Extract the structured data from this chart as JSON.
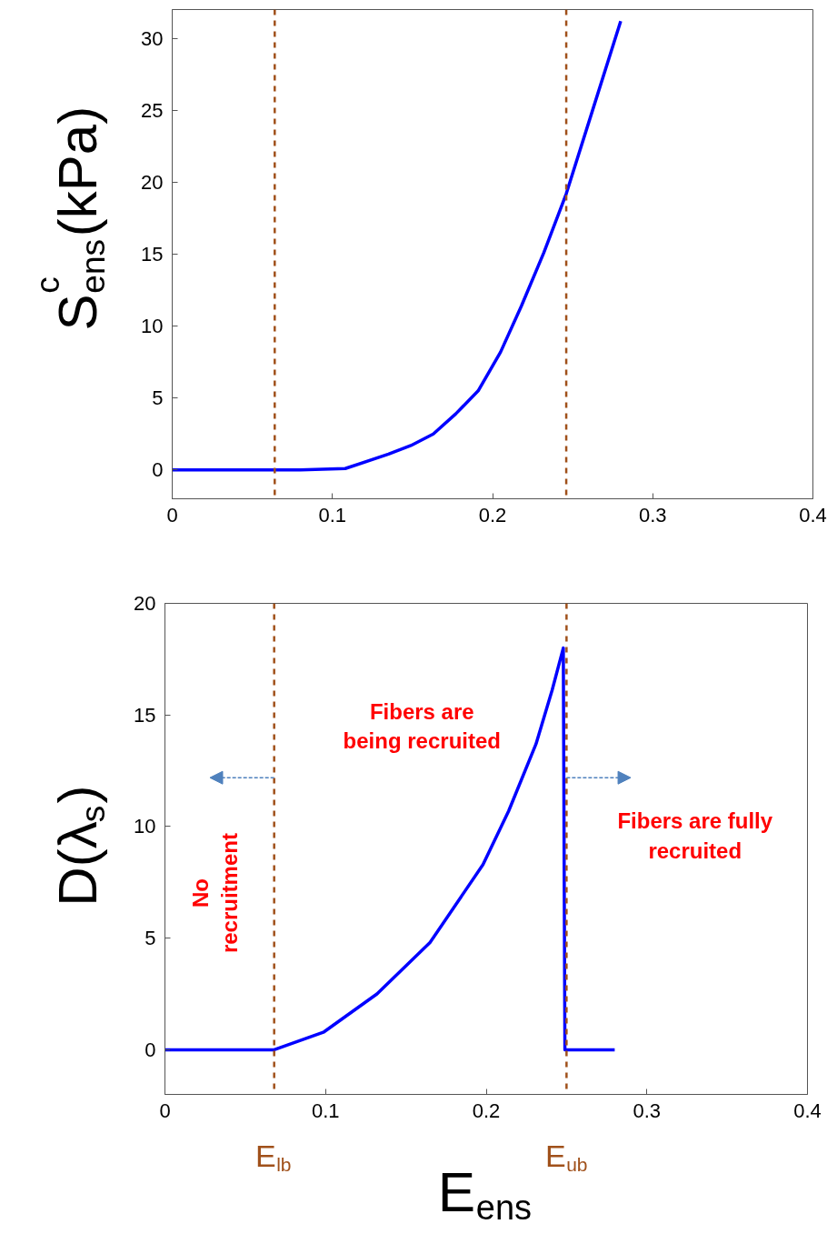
{
  "chart_data": [
    {
      "type": "line",
      "ylabel": "S$^{c}$$_{ens}$(kPa)",
      "xlim": [
        0,
        0.4
      ],
      "xticks": [
        0,
        0.1,
        0.2,
        0.3,
        0.4
      ],
      "ylim": [
        -2,
        32
      ],
      "yticks": [
        0,
        5,
        10,
        15,
        20,
        25,
        30
      ],
      "grid": false,
      "line_style": "solid",
      "series": [
        {
          "color": "#0000ff",
          "x": [
            0,
            0.04,
            0.08,
            0.108,
            0.135,
            0.149,
            0.163,
            0.177,
            0.191,
            0.205,
            0.218,
            0.232,
            0.246,
            0.263,
            0.28
          ],
          "values": [
            0,
            0,
            0,
            0.1,
            1.1,
            1.7,
            2.5,
            3.9,
            5.5,
            8.2,
            11.4,
            15.1,
            19.2,
            25.2,
            31.2
          ]
        }
      ],
      "ref_lines": [
        {
          "axis": "x",
          "value": 0.064,
          "color": "#a0501a",
          "line_style": "dashed"
        },
        {
          "axis": "x",
          "value": 0.246,
          "color": "#a0501a",
          "line_style": "dashed"
        }
      ]
    },
    {
      "type": "line",
      "ylabel": "D(λ$_{s}$)",
      "xlabel": "E$_{ens}$",
      "xlim": [
        0,
        0.4
      ],
      "xticks": [
        0,
        0.1,
        0.2,
        0.3,
        0.4
      ],
      "ylim": [
        -2,
        20
      ],
      "yticks": [
        0,
        5,
        10,
        15,
        20
      ],
      "grid": false,
      "line_style": "solid",
      "series": [
        {
          "color": "#0000ff",
          "x": [
            0,
            0.04,
            0.068,
            0.099,
            0.132,
            0.165,
            0.198,
            0.214,
            0.231,
            0.241,
            0.248,
            0.249,
            0.28
          ],
          "values": [
            0,
            0,
            0,
            0.8,
            2.5,
            4.8,
            8.3,
            10.7,
            13.7,
            16.1,
            18.0,
            0,
            0
          ]
        }
      ],
      "ref_lines": [
        {
          "axis": "x",
          "value": 0.068,
          "label": "E$_{lb}$",
          "color": "#a0501a",
          "line_style": "dashed"
        },
        {
          "axis": "x",
          "value": 0.25,
          "label": "E$_{ub}$",
          "color": "#a0501a",
          "line_style": "dashed"
        }
      ],
      "annotations": [
        "Fibers are\nbeing recruited",
        "No\nrecruitment",
        "Fibers are fully\nrecruited"
      ]
    }
  ]
}
